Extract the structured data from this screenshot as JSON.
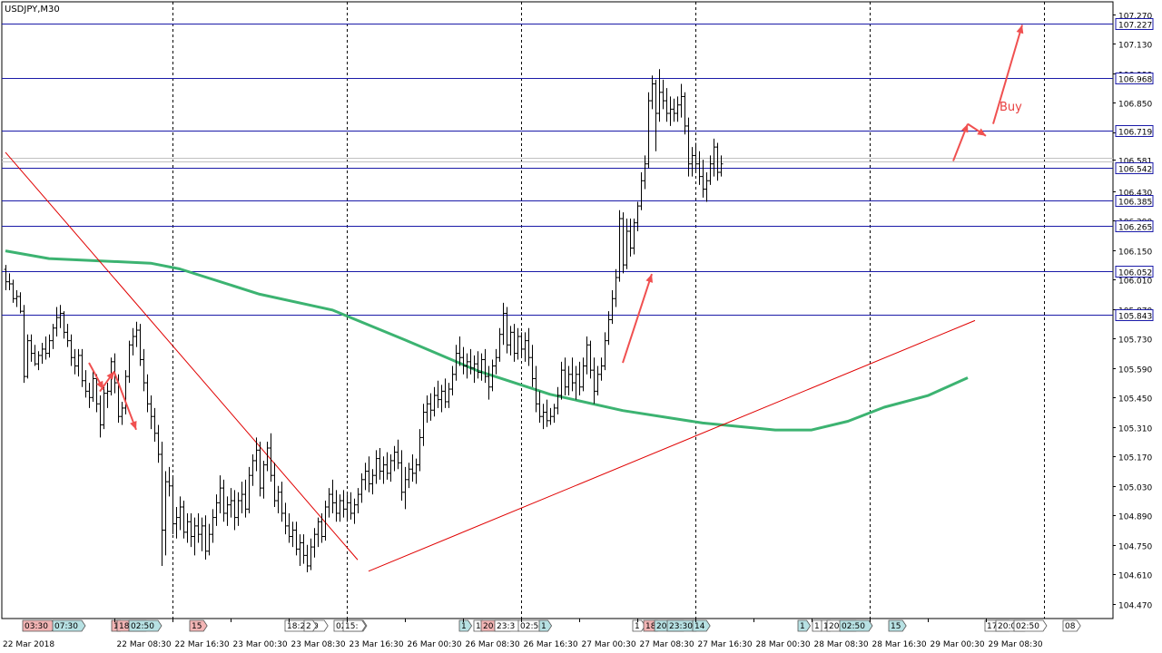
{
  "chart_data": {
    "type": "candlestick",
    "title": "USDJPY,M30",
    "ylim": [
      104.4,
      107.33
    ],
    "y_ticks": [
      107.27,
      107.13,
      106.99,
      106.85,
      106.71,
      106.581,
      106.43,
      106.29,
      106.15,
      106.01,
      105.87,
      105.73,
      105.59,
      105.45,
      105.31,
      105.17,
      105.03,
      104.89,
      104.75,
      104.61,
      104.47
    ],
    "current_price": 106.581,
    "horizontal_levels": [
      {
        "price": 107.227,
        "label": "107.227"
      },
      {
        "price": 106.968,
        "label": "106.968"
      },
      {
        "price": 106.719,
        "label": "106.719"
      },
      {
        "price": 106.542,
        "label": "106.542"
      },
      {
        "price": 106.385,
        "label": "106.385"
      },
      {
        "price": 106.265,
        "label": "106.265"
      },
      {
        "price": 106.052,
        "label": "106.052"
      },
      {
        "price": 105.843,
        "label": "105.843"
      }
    ],
    "x_labels": [
      "22 Mar 2018",
      "22 Mar 08:30",
      "22 Mar 16:30",
      "23 Mar 00:30",
      "23 Mar 08:30",
      "23 Mar 16:30",
      "26 Mar 00:30",
      "26 Mar 08:30",
      "26 Mar 16:30",
      "27 Mar 00:30",
      "27 Mar 08:30",
      "27 Mar 16:30",
      "28 Mar 00:30",
      "28 Mar 08:30",
      "28 Mar 16:30",
      "29 Mar 00:30",
      "29 Mar 08:30"
    ],
    "day_separators": 6,
    "moving_average": [
      {
        "bar": 0,
        "price": 106.147
      },
      {
        "bar": 12,
        "price": 106.11
      },
      {
        "bar": 40,
        "price": 106.088
      },
      {
        "bar": 48,
        "price": 106.061
      },
      {
        "bar": 70,
        "price": 105.941
      },
      {
        "bar": 90,
        "price": 105.866
      },
      {
        "bar": 110,
        "price": 105.724
      },
      {
        "bar": 130,
        "price": 105.577
      },
      {
        "bar": 150,
        "price": 105.465
      },
      {
        "bar": 170,
        "price": 105.388
      },
      {
        "bar": 192,
        "price": 105.329
      },
      {
        "bar": 212,
        "price": 105.296
      },
      {
        "bar": 222,
        "price": 105.296
      },
      {
        "bar": 232,
        "price": 105.337
      },
      {
        "bar": 242,
        "price": 105.404
      },
      {
        "bar": 254,
        "price": 105.459
      },
      {
        "bar": 265,
        "price": 105.544
      }
    ],
    "trendlines": [
      {
        "from": {
          "bar": 0,
          "price": 106.615
        },
        "to": {
          "bar": 97,
          "price": 104.679
        }
      },
      {
        "from": {
          "bar": 100,
          "price": 104.625
        },
        "to": {
          "bar": 267,
          "price": 105.816
        }
      }
    ],
    "annotation_text": "Buy",
    "event_markers": [
      "03:30",
      "07:30",
      "1",
      "18:00",
      "02:50",
      "15",
      "18:20:0",
      "2",
      "02:00",
      "15:",
      "1",
      "1",
      "20:30",
      "23:3",
      "02:50",
      "1",
      "1",
      "18",
      "20:00",
      "23:30",
      "14",
      "1",
      "1",
      "1",
      "20:00",
      "02:50",
      "15",
      "17:3",
      "20:00",
      "02:50",
      "08"
    ],
    "candles": [
      [
        106.059,
        106.08,
        105.96,
        106.0
      ],
      [
        106.0,
        106.04,
        105.96,
        105.99
      ],
      [
        105.99,
        106.01,
        105.9,
        105.92
      ],
      [
        105.92,
        105.96,
        105.88,
        105.93
      ],
      [
        105.93,
        105.95,
        105.85,
        105.86
      ],
      [
        105.86,
        105.89,
        105.52,
        105.55
      ],
      [
        105.55,
        105.75,
        105.54,
        105.72
      ],
      [
        105.72,
        105.75,
        105.62,
        105.66
      ],
      [
        105.66,
        105.7,
        105.6,
        105.61
      ],
      [
        105.61,
        105.67,
        105.58,
        105.65
      ],
      [
        105.65,
        105.71,
        105.61,
        105.68
      ],
      [
        105.68,
        105.74,
        105.63,
        105.66
      ],
      [
        105.66,
        105.75,
        105.64,
        105.72
      ],
      [
        105.72,
        105.8,
        105.68,
        105.78
      ],
      [
        105.78,
        105.88,
        105.74,
        105.83
      ],
      [
        105.83,
        105.89,
        105.78,
        105.85
      ],
      [
        105.85,
        105.86,
        105.73,
        105.76
      ],
      [
        105.76,
        105.8,
        105.69,
        105.72
      ],
      [
        105.72,
        105.75,
        105.6,
        105.64
      ],
      [
        105.64,
        105.68,
        105.56,
        105.6
      ],
      [
        105.6,
        105.68,
        105.55,
        105.65
      ],
      [
        105.65,
        105.68,
        105.5,
        105.53
      ],
      [
        105.53,
        105.58,
        105.45,
        105.48
      ],
      [
        105.48,
        105.52,
        105.4,
        105.45
      ],
      [
        105.45,
        105.58,
        105.43,
        105.54
      ],
      [
        105.54,
        105.56,
        105.38,
        105.42
      ],
      [
        105.42,
        105.46,
        105.26,
        105.32
      ],
      [
        105.32,
        105.5,
        105.3,
        105.47
      ],
      [
        105.47,
        105.52,
        105.4,
        105.48
      ],
      [
        105.48,
        105.64,
        105.46,
        105.62
      ],
      [
        105.62,
        105.66,
        105.47,
        105.52
      ],
      [
        105.52,
        105.56,
        105.33,
        105.36
      ],
      [
        105.36,
        105.43,
        105.32,
        105.4
      ],
      [
        105.4,
        105.58,
        105.37,
        105.55
      ],
      [
        105.55,
        105.72,
        105.52,
        105.7
      ],
      [
        105.7,
        105.78,
        105.65,
        105.74
      ],
      [
        105.74,
        105.81,
        105.69,
        105.77
      ],
      [
        105.77,
        105.8,
        105.6,
        105.63
      ],
      [
        105.63,
        105.68,
        105.48,
        105.52
      ],
      [
        105.52,
        105.56,
        105.38,
        105.42
      ],
      [
        105.42,
        105.46,
        105.3,
        105.36
      ],
      [
        105.36,
        105.4,
        105.24,
        105.28
      ],
      [
        105.28,
        105.32,
        105.14,
        105.18
      ],
      [
        105.18,
        105.24,
        104.65,
        104.82
      ],
      [
        104.82,
        105.1,
        104.7,
        105.05
      ],
      [
        105.05,
        105.12,
        104.98,
        105.03
      ],
      [
        105.03,
        105.07,
        104.8,
        104.85
      ],
      [
        104.85,
        104.93,
        104.78,
        104.88
      ],
      [
        104.88,
        104.98,
        104.82,
        104.93
      ],
      [
        104.93,
        104.96,
        104.78,
        104.81
      ],
      [
        104.81,
        104.9,
        104.76,
        104.86
      ],
      [
        104.86,
        104.9,
        104.74,
        104.79
      ],
      [
        104.79,
        104.88,
        104.7,
        104.84
      ],
      [
        104.84,
        104.9,
        104.76,
        104.8
      ],
      [
        104.8,
        104.88,
        104.72,
        104.84
      ],
      [
        104.84,
        104.89,
        104.68,
        104.72
      ],
      [
        104.72,
        104.85,
        104.7,
        104.8
      ],
      [
        104.8,
        104.92,
        104.76,
        104.88
      ],
      [
        104.88,
        104.99,
        104.84,
        104.95
      ],
      [
        104.95,
        105.08,
        104.9,
        105.02
      ],
      [
        105.02,
        105.06,
        104.86,
        104.9
      ],
      [
        104.9,
        104.98,
        104.84,
        104.94
      ],
      [
        104.94,
        105.02,
        104.88,
        104.96
      ],
      [
        104.96,
        105.01,
        104.82,
        104.88
      ],
      [
        104.88,
        105.0,
        104.84,
        104.96
      ],
      [
        104.96,
        105.05,
        104.9,
        104.99
      ],
      [
        104.99,
        105.06,
        104.88,
        104.92
      ],
      [
        104.92,
        105.12,
        104.9,
        105.08
      ],
      [
        105.08,
        105.18,
        105.03,
        105.15
      ],
      [
        105.15,
        105.26,
        105.1,
        105.2
      ],
      [
        105.2,
        105.24,
        104.98,
        105.02
      ],
      [
        105.02,
        105.15,
        104.97,
        105.13
      ],
      [
        105.13,
        105.24,
        105.1,
        105.21
      ],
      [
        105.21,
        105.28,
        105.05,
        105.08
      ],
      [
        105.08,
        105.14,
        104.93,
        104.96
      ],
      [
        104.96,
        105.03,
        104.9,
        105.0
      ],
      [
        105.0,
        105.05,
        104.86,
        104.9
      ],
      [
        104.9,
        104.95,
        104.8,
        104.84
      ],
      [
        104.84,
        104.9,
        104.76,
        104.79
      ],
      [
        104.79,
        104.86,
        104.74,
        104.82
      ],
      [
        104.82,
        104.86,
        104.7,
        104.73
      ],
      [
        104.73,
        104.8,
        104.65,
        104.76
      ],
      [
        104.76,
        104.8,
        104.66,
        104.7
      ],
      [
        104.7,
        104.75,
        104.62,
        104.65
      ],
      [
        104.65,
        104.78,
        104.63,
        104.74
      ],
      [
        104.74,
        104.83,
        104.69,
        104.8
      ],
      [
        104.8,
        104.88,
        104.74,
        104.86
      ],
      [
        104.86,
        104.9,
        104.76,
        104.79
      ],
      [
        104.79,
        104.96,
        104.77,
        104.93
      ],
      [
        104.93,
        105.02,
        104.88,
        104.99
      ],
      [
        104.99,
        105.06,
        104.9,
        104.95
      ],
      [
        104.95,
        105.01,
        104.86,
        104.9
      ],
      [
        104.9,
        104.99,
        104.86,
        104.96
      ],
      [
        104.96,
        105.01,
        104.88,
        104.92
      ],
      [
        104.92,
        104.99,
        104.86,
        104.95
      ],
      [
        104.95,
        105.0,
        104.87,
        104.9
      ],
      [
        104.9,
        104.97,
        104.85,
        104.94
      ],
      [
        104.94,
        105.02,
        104.9,
        104.99
      ],
      [
        104.99,
        105.09,
        104.95,
        105.06
      ],
      [
        105.06,
        105.14,
        105.01,
        105.1
      ],
      [
        105.1,
        105.17,
        105.0,
        105.04
      ],
      [
        105.04,
        105.11,
        104.99,
        105.08
      ],
      [
        105.08,
        105.2,
        105.04,
        105.16
      ],
      [
        105.16,
        105.21,
        105.06,
        105.1
      ],
      [
        105.1,
        105.17,
        105.04,
        105.13
      ],
      [
        105.13,
        105.19,
        105.06,
        105.09
      ],
      [
        105.09,
        105.18,
        105.05,
        105.15
      ],
      [
        105.15,
        105.22,
        105.1,
        105.19
      ],
      [
        105.19,
        105.25,
        105.11,
        105.14
      ],
      [
        105.14,
        105.2,
        104.96,
        105.0
      ],
      [
        105.0,
        105.12,
        104.92,
        105.06
      ],
      [
        105.06,
        105.14,
        105.02,
        105.11
      ],
      [
        105.11,
        105.18,
        105.05,
        105.09
      ],
      [
        105.09,
        105.16,
        105.04,
        105.13
      ],
      [
        105.13,
        105.3,
        105.1,
        105.26
      ],
      [
        105.26,
        105.42,
        105.22,
        105.38
      ],
      [
        105.38,
        105.46,
        105.33,
        105.42
      ],
      [
        105.42,
        105.47,
        105.34,
        105.39
      ],
      [
        105.39,
        105.5,
        105.36,
        105.46
      ],
      [
        105.46,
        105.53,
        105.4,
        105.44
      ],
      [
        105.44,
        105.51,
        105.38,
        105.48
      ],
      [
        105.48,
        105.54,
        105.4,
        105.43
      ],
      [
        105.43,
        105.52,
        105.4,
        105.49
      ],
      [
        105.49,
        105.6,
        105.46,
        105.56
      ],
      [
        105.56,
        105.7,
        105.53,
        105.66
      ],
      [
        105.66,
        105.74,
        105.6,
        105.64
      ],
      [
        105.64,
        105.69,
        105.56,
        105.6
      ],
      [
        105.6,
        105.66,
        105.54,
        105.62
      ],
      [
        105.62,
        105.68,
        105.56,
        105.59
      ],
      [
        105.59,
        105.65,
        105.52,
        105.61
      ],
      [
        105.61,
        105.67,
        105.54,
        105.57
      ],
      [
        105.57,
        105.66,
        105.53,
        105.63
      ],
      [
        105.63,
        105.68,
        105.52,
        105.55
      ],
      [
        105.55,
        105.6,
        105.44,
        105.5
      ],
      [
        105.5,
        105.63,
        105.48,
        105.6
      ],
      [
        105.6,
        105.68,
        105.56,
        105.64
      ],
      [
        105.64,
        105.78,
        105.62,
        105.75
      ],
      [
        105.75,
        105.9,
        105.7,
        105.85
      ],
      [
        105.85,
        105.88,
        105.66,
        105.7
      ],
      [
        105.7,
        105.79,
        105.65,
        105.76
      ],
      [
        105.76,
        105.8,
        105.62,
        105.66
      ],
      [
        105.66,
        105.78,
        105.63,
        105.74
      ],
      [
        105.74,
        105.76,
        105.64,
        105.68
      ],
      [
        105.68,
        105.76,
        105.62,
        105.72
      ],
      [
        105.72,
        105.78,
        105.6,
        105.64
      ],
      [
        105.64,
        105.7,
        105.5,
        105.54
      ],
      [
        105.54,
        105.6,
        105.38,
        105.42
      ],
      [
        105.42,
        105.48,
        105.33,
        105.36
      ],
      [
        105.36,
        105.42,
        105.3,
        105.38
      ],
      [
        105.38,
        105.44,
        105.31,
        105.34
      ],
      [
        105.34,
        105.4,
        105.32,
        105.36
      ],
      [
        105.36,
        105.42,
        105.33,
        105.4
      ],
      [
        105.4,
        105.5,
        105.37,
        105.46
      ],
      [
        105.46,
        105.62,
        105.44,
        105.58
      ],
      [
        105.58,
        105.64,
        105.46,
        105.5
      ],
      [
        105.5,
        105.6,
        105.46,
        105.56
      ],
      [
        105.56,
        105.64,
        105.48,
        105.52
      ],
      [
        105.52,
        105.6,
        105.44,
        105.56
      ],
      [
        105.56,
        105.62,
        105.46,
        105.5
      ],
      [
        105.5,
        105.64,
        105.48,
        105.6
      ],
      [
        105.6,
        105.74,
        105.56,
        105.7
      ],
      [
        105.7,
        105.72,
        105.54,
        105.58
      ],
      [
        105.58,
        105.64,
        105.42,
        105.48
      ],
      [
        105.48,
        105.6,
        105.46,
        105.56
      ],
      [
        105.56,
        105.64,
        105.53,
        105.6
      ],
      [
        105.6,
        105.76,
        105.58,
        105.72
      ],
      [
        105.72,
        105.86,
        105.7,
        105.82
      ],
      [
        105.82,
        105.96,
        105.8,
        105.92
      ],
      [
        105.92,
        106.06,
        105.88,
        106.02
      ],
      [
        106.02,
        106.34,
        106.0,
        106.3
      ],
      [
        106.3,
        106.33,
        106.04,
        106.08
      ],
      [
        106.08,
        106.3,
        106.06,
        106.24
      ],
      [
        106.24,
        106.3,
        106.12,
        106.16
      ],
      [
        106.16,
        106.3,
        106.13,
        106.28
      ],
      [
        106.28,
        106.38,
        106.24,
        106.36
      ],
      [
        106.36,
        106.52,
        106.34,
        106.48
      ],
      [
        106.48,
        106.6,
        106.44,
        106.56
      ],
      [
        106.56,
        106.9,
        106.54,
        106.86
      ],
      [
        106.86,
        106.98,
        106.82,
        106.94
      ],
      [
        106.94,
        106.96,
        106.62,
        106.8
      ],
      [
        106.8,
        107.01,
        106.76,
        106.9
      ],
      [
        106.9,
        106.96,
        106.82,
        106.86
      ],
      [
        106.86,
        106.92,
        106.76,
        106.8
      ],
      [
        106.8,
        106.88,
        106.74,
        106.82
      ],
      [
        106.82,
        106.87,
        106.76,
        106.8
      ],
      [
        106.8,
        106.88,
        106.76,
        106.84
      ],
      [
        106.84,
        106.94,
        106.78,
        106.88
      ],
      [
        106.88,
        106.9,
        106.7,
        106.74
      ],
      [
        106.74,
        106.78,
        106.5,
        106.56
      ],
      [
        106.56,
        106.64,
        106.5,
        106.6
      ],
      [
        106.6,
        106.66,
        106.52,
        106.56
      ],
      [
        106.56,
        106.62,
        106.46,
        106.5
      ],
      [
        106.5,
        106.58,
        106.4,
        106.44
      ],
      [
        106.44,
        106.52,
        106.38,
        106.48
      ],
      [
        106.48,
        106.6,
        106.46,
        106.56
      ],
      [
        106.56,
        106.68,
        106.5,
        106.64
      ],
      [
        106.64,
        106.66,
        106.48,
        106.52
      ],
      [
        106.52,
        106.6,
        106.5,
        106.56
      ]
    ]
  }
}
